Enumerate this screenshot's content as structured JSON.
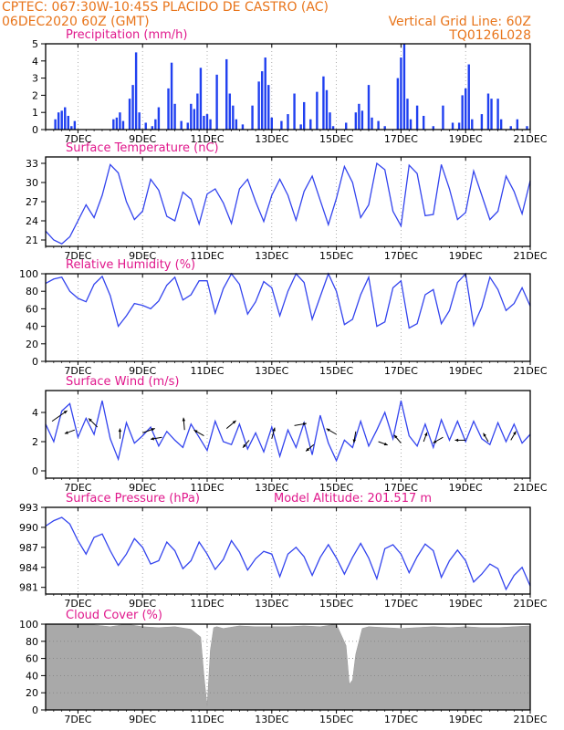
{
  "header": {
    "line1_left": "CPTEC:   067:30W-10:45S   PLACIDO DE CASTRO (AC)",
    "line2_left": "06DEC2020 60Z (GMT)",
    "line2_right": "Vertical Grid Line: 60Z",
    "line3_right": "TQ0126L028",
    "color": "#e8741a"
  },
  "colors": {
    "title": "#e0188c",
    "series": "#3344ee",
    "bar": "#2040f0",
    "cloud": "#a9a9a9",
    "grid": "#999999"
  },
  "x_axis": {
    "day_min": 6,
    "day_max": 21,
    "tick_days": [
      7,
      9,
      11,
      13,
      15,
      17,
      19,
      21
    ],
    "tick_labels": [
      "7DEC",
      "9DEC",
      "11DEC",
      "13DEC",
      "15DEC",
      "17DEC",
      "19DEC",
      "21DEC"
    ]
  },
  "chart_data": [
    {
      "type": "bar",
      "title": "Precipitation (mm/h)",
      "ylim": [
        0,
        5
      ],
      "yticks": [
        0,
        1,
        2,
        3,
        4,
        5
      ],
      "x": [
        6.3,
        6.4,
        6.5,
        6.6,
        6.7,
        6.8,
        6.9,
        8.1,
        8.2,
        8.3,
        8.4,
        8.6,
        8.7,
        8.8,
        8.9,
        9.1,
        9.3,
        9.4,
        9.5,
        9.8,
        9.9,
        10.0,
        10.2,
        10.4,
        10.5,
        10.6,
        10.7,
        10.8,
        10.9,
        11.0,
        11.1,
        11.3,
        11.6,
        11.7,
        11.8,
        11.9,
        12.1,
        12.4,
        12.6,
        12.7,
        12.8,
        12.9,
        13.0,
        13.3,
        13.5,
        13.7,
        13.9,
        14.0,
        14.2,
        14.4,
        14.6,
        14.7,
        14.8,
        14.9,
        15.3,
        15.6,
        15.7,
        15.8,
        16.0,
        16.1,
        16.3,
        16.5,
        16.9,
        17.0,
        17.1,
        17.2,
        17.3,
        17.5,
        17.7,
        18.0,
        18.3,
        18.6,
        18.8,
        18.9,
        19.0,
        19.1,
        19.2,
        19.5,
        19.7,
        19.8,
        20.0,
        20.1,
        20.4,
        20.6,
        20.9
      ],
      "values": [
        0.6,
        1.0,
        1.1,
        1.3,
        0.8,
        0.2,
        0.5,
        0.6,
        0.7,
        1.0,
        0.5,
        1.8,
        2.6,
        4.5,
        1.0,
        0.4,
        0.2,
        0.6,
        1.3,
        2.4,
        3.9,
        1.5,
        0.5,
        0.4,
        1.5,
        1.2,
        2.1,
        3.6,
        0.8,
        0.9,
        0.6,
        3.2,
        4.1,
        2.1,
        1.4,
        0.6,
        0.3,
        1.4,
        2.8,
        3.4,
        4.2,
        2.6,
        0.7,
        0.5,
        0.9,
        2.1,
        0.3,
        1.6,
        0.6,
        2.2,
        3.1,
        2.3,
        1.0,
        0.2,
        0.4,
        1.0,
        1.5,
        1.1,
        2.6,
        0.7,
        0.5,
        0.2,
        3.0,
        4.2,
        5.0,
        1.8,
        0.6,
        1.4,
        0.8,
        0.2,
        1.4,
        0.4,
        0.4,
        2.0,
        2.4,
        3.8,
        0.6,
        0.9,
        2.1,
        1.8,
        1.8,
        0.6,
        0.2,
        0.6,
        0.2
      ]
    },
    {
      "type": "line",
      "title": "Surface Temperature (nC)",
      "ylim": [
        20,
        34
      ],
      "yticks": [
        21,
        24,
        27,
        30,
        33
      ],
      "x": [
        6.0,
        6.25,
        6.5,
        6.75,
        7.0,
        7.25,
        7.5,
        7.75,
        8.0,
        8.25,
        8.5,
        8.75,
        9.0,
        9.25,
        9.5,
        9.75,
        10.0,
        10.25,
        10.5,
        10.75,
        11.0,
        11.25,
        11.5,
        11.75,
        12.0,
        12.25,
        12.5,
        12.75,
        13.0,
        13.25,
        13.5,
        13.75,
        14.0,
        14.25,
        14.5,
        14.75,
        15.0,
        15.25,
        15.5,
        15.75,
        16.0,
        16.25,
        16.5,
        16.75,
        17.0,
        17.25,
        17.5,
        17.75,
        18.0,
        18.25,
        18.5,
        18.75,
        19.0,
        19.25,
        19.5,
        19.75,
        20.0,
        20.25,
        20.5,
        20.75,
        21.0
      ],
      "values": [
        22.4,
        21.0,
        20.4,
        21.5,
        24.0,
        26.5,
        24.5,
        28.0,
        32.8,
        31.5,
        27.0,
        24.2,
        25.5,
        30.5,
        28.8,
        24.7,
        24.0,
        28.5,
        27.4,
        23.5,
        28.2,
        29.0,
        26.8,
        23.6,
        29.0,
        30.5,
        27.0,
        23.9,
        28.0,
        30.5,
        28.0,
        24.1,
        28.6,
        31.0,
        27.2,
        23.4,
        27.5,
        32.5,
        30.0,
        24.5,
        26.5,
        33.0,
        32.0,
        25.5,
        23.2,
        32.7,
        31.4,
        24.8,
        25.0,
        32.8,
        29.0,
        24.2,
        25.3,
        31.8,
        28.0,
        24.2,
        25.5,
        31.0,
        28.6,
        25.1,
        30.3
      ]
    },
    {
      "type": "line",
      "title": "Relative Humidity (%)",
      "ylim": [
        0,
        100
      ],
      "yticks": [
        0,
        20,
        40,
        60,
        80,
        100
      ],
      "x": [
        6.0,
        6.25,
        6.5,
        6.75,
        7.0,
        7.25,
        7.5,
        7.75,
        8.0,
        8.25,
        8.5,
        8.75,
        9.0,
        9.25,
        9.5,
        9.75,
        10.0,
        10.25,
        10.5,
        10.75,
        11.0,
        11.25,
        11.5,
        11.75,
        12.0,
        12.25,
        12.5,
        12.75,
        13.0,
        13.25,
        13.5,
        13.75,
        14.0,
        14.25,
        14.5,
        14.75,
        15.0,
        15.25,
        15.5,
        15.75,
        16.0,
        16.25,
        16.5,
        16.75,
        17.0,
        17.25,
        17.5,
        17.75,
        18.0,
        18.25,
        18.5,
        18.75,
        19.0,
        19.25,
        19.5,
        19.75,
        20.0,
        20.25,
        20.5,
        20.75,
        21.0
      ],
      "values": [
        89,
        94,
        96,
        80,
        72,
        68,
        88,
        97,
        75,
        40,
        52,
        66,
        64,
        60,
        69,
        87,
        96,
        70,
        76,
        92,
        92,
        55,
        83,
        100,
        88,
        54,
        68,
        91,
        84,
        52,
        80,
        100,
        90,
        48,
        74,
        100,
        80,
        42,
        48,
        76,
        96,
        40,
        45,
        84,
        92,
        38,
        43,
        76,
        82,
        43,
        58,
        90,
        100,
        41,
        62,
        96,
        82,
        58,
        66,
        84,
        63
      ]
    },
    {
      "type": "line",
      "title": "Surface Wind (m/s)",
      "ylim": [
        -0.5,
        5.5
      ],
      "yticks": [
        0,
        2,
        4
      ],
      "x": [
        6.0,
        6.25,
        6.5,
        6.75,
        7.0,
        7.25,
        7.5,
        7.75,
        8.0,
        8.25,
        8.5,
        8.75,
        9.0,
        9.25,
        9.5,
        9.75,
        10.0,
        10.25,
        10.5,
        10.75,
        11.0,
        11.25,
        11.5,
        11.75,
        12.0,
        12.25,
        12.5,
        12.75,
        13.0,
        13.25,
        13.5,
        13.75,
        14.0,
        14.25,
        14.5,
        14.75,
        15.0,
        15.25,
        15.5,
        15.75,
        16.0,
        16.25,
        16.5,
        16.75,
        17.0,
        17.25,
        17.5,
        17.75,
        18.0,
        18.25,
        18.5,
        18.75,
        19.0,
        19.25,
        19.5,
        19.75,
        20.0,
        20.25,
        20.5,
        20.75,
        21.0
      ],
      "values": [
        3.2,
        2.0,
        4.1,
        4.6,
        2.3,
        3.6,
        2.5,
        4.8,
        2.2,
        0.8,
        3.3,
        1.9,
        2.4,
        3.0,
        1.7,
        2.7,
        2.1,
        1.6,
        3.2,
        2.3,
        1.4,
        3.4,
        2.0,
        1.8,
        3.2,
        1.5,
        2.6,
        1.3,
        3.0,
        1.0,
        2.8,
        1.6,
        3.3,
        1.1,
        3.8,
        1.9,
        0.7,
        2.1,
        1.6,
        3.4,
        1.7,
        2.8,
        4.0,
        2.2,
        4.8,
        2.4,
        1.7,
        3.2,
        1.6,
        3.5,
        2.1,
        3.4,
        2.0,
        3.4,
        2.2,
        1.8,
        3.3,
        2.0,
        3.2,
        1.9,
        2.5
      ],
      "arrows_x": [
        6.2,
        6.9,
        7.6,
        8.3,
        9.0,
        9.6,
        10.3,
        10.9,
        11.6,
        12.3,
        13.0,
        13.7,
        14.3,
        15.0,
        15.6,
        16.3,
        17.0,
        17.7,
        18.3,
        19.0,
        19.7,
        20.4
      ],
      "arrows_y": [
        3.4,
        2.8,
        3.0,
        2.2,
        2.6,
        2.3,
        2.8,
        2.4,
        2.9,
        2.1,
        2.2,
        3.1,
        1.8,
        2.5,
        2.7,
        2.0,
        1.9,
        2.0,
        2.3,
        2.1,
        2.0,
        2.1
      ],
      "arrows_dir_deg": [
        35,
        200,
        135,
        90,
        20,
        190,
        95,
        150,
        40,
        230,
        75,
        10,
        220,
        150,
        260,
        340,
        130,
        70,
        210,
        180,
        120,
        60
      ],
      "arrows_len_ms": [
        4.5,
        2.6,
        3.0,
        2.5,
        3.2,
        2.8,
        3.0,
        2.8,
        3.0,
        2.4,
        2.8,
        3.0,
        2.5,
        2.8,
        2.8,
        2.4,
        2.6,
        2.4,
        2.8,
        2.6,
        2.4,
        2.5
      ]
    },
    {
      "type": "line",
      "title": "Surface Pressure (hPa)",
      "ylim": [
        980,
        993
      ],
      "yticks": [
        981,
        984,
        987,
        990,
        993
      ],
      "x": [
        6.0,
        6.25,
        6.5,
        6.75,
        7.0,
        7.25,
        7.5,
        7.75,
        8.0,
        8.25,
        8.5,
        8.75,
        9.0,
        9.25,
        9.5,
        9.75,
        10.0,
        10.25,
        10.5,
        10.75,
        11.0,
        11.25,
        11.5,
        11.75,
        12.0,
        12.25,
        12.5,
        12.75,
        13.0,
        13.25,
        13.5,
        13.75,
        14.0,
        14.25,
        14.5,
        14.75,
        15.0,
        15.25,
        15.5,
        15.75,
        16.0,
        16.25,
        16.5,
        16.75,
        17.0,
        17.25,
        17.5,
        17.75,
        18.0,
        18.25,
        18.5,
        18.75,
        19.0,
        19.25,
        19.5,
        19.75,
        20.0,
        20.25,
        20.5,
        20.75,
        21.0
      ],
      "values": [
        990.2,
        991.0,
        991.5,
        990.5,
        988.0,
        986.0,
        988.5,
        989.0,
        986.5,
        984.3,
        986.0,
        988.3,
        987.0,
        984.5,
        985.0,
        987.8,
        986.5,
        983.8,
        985.0,
        987.8,
        986.0,
        983.7,
        985.2,
        988.0,
        986.3,
        983.6,
        985.3,
        986.4,
        986.0,
        982.6,
        986.0,
        987.0,
        985.6,
        982.8,
        985.5,
        987.4,
        985.4,
        983.0,
        985.5,
        987.6,
        985.4,
        982.3,
        986.8,
        987.4,
        986.0,
        983.2,
        985.6,
        987.5,
        986.5,
        982.5,
        985.0,
        986.6,
        985.0,
        981.8,
        983.0,
        984.5,
        983.8,
        980.7,
        982.8,
        984.0,
        981.2
      ]
    },
    {
      "type": "area",
      "title": "Cloud Cover (%)",
      "ylim": [
        0,
        100
      ],
      "yticks": [
        0,
        20,
        40,
        60,
        80,
        100
      ],
      "x": [
        6.0,
        6.5,
        7.0,
        7.5,
        8.0,
        8.5,
        9.0,
        9.5,
        10.0,
        10.5,
        10.8,
        10.9,
        11.0,
        11.1,
        11.2,
        11.3,
        11.5,
        12.0,
        12.5,
        13.0,
        13.5,
        14.0,
        14.5,
        15.0,
        15.3,
        15.4,
        15.5,
        15.6,
        15.8,
        16.0,
        16.5,
        17.0,
        17.5,
        18.0,
        18.5,
        19.0,
        19.5,
        20.0,
        20.5,
        21.0
      ],
      "values": [
        100,
        100,
        99,
        99,
        97,
        100,
        97,
        96,
        97,
        94,
        85,
        40,
        5,
        70,
        96,
        97,
        95,
        98,
        97,
        97,
        97,
        98,
        97,
        100,
        75,
        30,
        35,
        65,
        95,
        97,
        96,
        95,
        96,
        97,
        96,
        97,
        96,
        96,
        97,
        98
      ]
    }
  ],
  "extra": {
    "model_altitude": "Model Altitude: 201.517 m"
  }
}
